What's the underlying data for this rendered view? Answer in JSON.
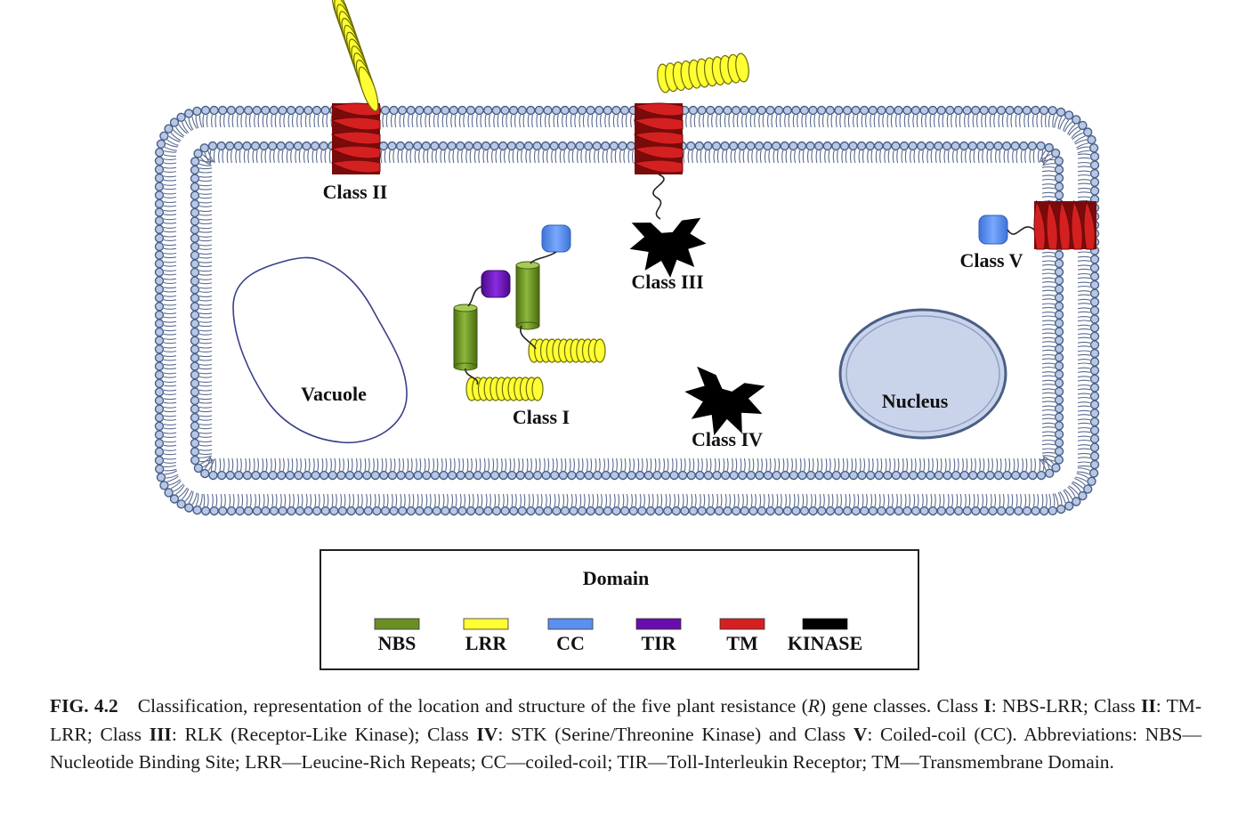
{
  "diagram": {
    "labels": {
      "class_i": "Class I",
      "class_ii": "Class II",
      "class_iii": "Class III",
      "class_iv": "Class IV",
      "class_v": "Class V",
      "vacuole": "Vacuole",
      "nucleus": "Nucleus"
    },
    "legend": {
      "title": "Domain",
      "items": [
        {
          "label": "NBS",
          "color": "#6b8e23"
        },
        {
          "label": "LRR",
          "color": "#ffff33"
        },
        {
          "label": "CC",
          "color": "#5b8ff0"
        },
        {
          "label": "TIR",
          "color": "#6a0dad"
        },
        {
          "label": "TM",
          "color": "#d42020"
        },
        {
          "label": "KINASE",
          "color": "#000000"
        }
      ]
    },
    "colors": {
      "membrane_head": "#b7c8e6",
      "membrane_outline": "#4a5f86",
      "nucleus_fill": "#c9d3ea",
      "vacuole_outline": "#3a3f8a"
    }
  },
  "caption": {
    "fig_no": "FIG. 4.2",
    "p1": "Classification, representation of the location and structure of the five plant resistance (",
    "r_italic": "R",
    "p2": ") gene classes. Class ",
    "c1": "I",
    "p3": ": NBS-LRR; Class ",
    "c2": "II",
    "p4": ": TM-LRR; Class ",
    "c3": "III",
    "p5": ": RLK (Receptor-Like Kinase); Class ",
    "c4": "IV",
    "p6": ": STK (Serine/Threonine Kinase) and Class ",
    "c5": "V",
    "p7": ": Coiled-coil (CC). Abbreviations: NBS—Nucleotide Binding Site; LRR—Leucine-Rich Repeats; CC—coiled-coil; TIR—Toll-Interleukin Receptor; TM—Transmembrane Domain."
  }
}
